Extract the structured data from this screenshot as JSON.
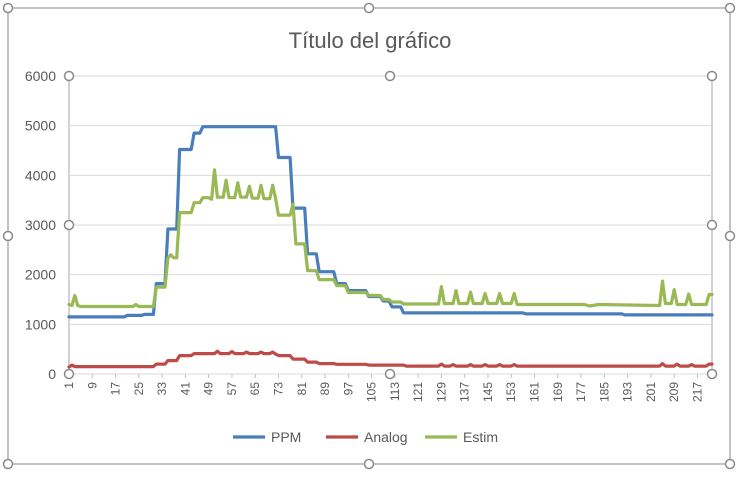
{
  "chart_data": {
    "type": "line",
    "title": "Título del gráfico",
    "xlabel": "",
    "ylabel": "",
    "ylim": [
      0,
      6000
    ],
    "yticks": [
      0,
      1000,
      2000,
      3000,
      4000,
      5000,
      6000
    ],
    "xlim": [
      1,
      222
    ],
    "x_tick_labels": [
      "1",
      "9",
      "17",
      "25",
      "33",
      "41",
      "49",
      "57",
      "65",
      "73",
      "81",
      "89",
      "97",
      "105",
      "113",
      "121",
      "129",
      "137",
      "145",
      "153",
      "161",
      "169",
      "177",
      "185",
      "193",
      "201",
      "209",
      "217"
    ],
    "grid": true,
    "legend": "bottom",
    "series": [
      {
        "name": "PPM",
        "color": "#4a7ebb",
        "points": [
          [
            1,
            1150
          ],
          [
            20,
            1150
          ],
          [
            21,
            1180
          ],
          [
            26,
            1180
          ],
          [
            27,
            1200
          ],
          [
            30,
            1200
          ],
          [
            31,
            1820
          ],
          [
            34,
            1820
          ],
          [
            35,
            2920
          ],
          [
            38,
            2920
          ],
          [
            39,
            4520
          ],
          [
            43,
            4520
          ],
          [
            44,
            4850
          ],
          [
            46,
            4850
          ],
          [
            47,
            4980
          ],
          [
            72,
            4980
          ],
          [
            73,
            4360
          ],
          [
            77,
            4360
          ],
          [
            78,
            3340
          ],
          [
            82,
            3340
          ],
          [
            83,
            2420
          ],
          [
            86,
            2420
          ],
          [
            87,
            2060
          ],
          [
            92,
            2060
          ],
          [
            93,
            1820
          ],
          [
            96,
            1820
          ],
          [
            97,
            1680
          ],
          [
            103,
            1680
          ],
          [
            104,
            1560
          ],
          [
            108,
            1560
          ],
          [
            109,
            1470
          ],
          [
            111,
            1470
          ],
          [
            112,
            1350
          ],
          [
            115,
            1350
          ],
          [
            116,
            1230
          ],
          [
            157,
            1230
          ],
          [
            158,
            1210
          ],
          [
            191,
            1210
          ],
          [
            192,
            1190
          ],
          [
            222,
            1190
          ]
        ]
      },
      {
        "name": "Analog",
        "color": "#be4b48",
        "points": [
          [
            1,
            140
          ],
          [
            2,
            180
          ],
          [
            3,
            150
          ],
          [
            30,
            150
          ],
          [
            31,
            200
          ],
          [
            34,
            200
          ],
          [
            35,
            270
          ],
          [
            38,
            270
          ],
          [
            39,
            370
          ],
          [
            43,
            370
          ],
          [
            44,
            410
          ],
          [
            51,
            410
          ],
          [
            52,
            460
          ],
          [
            53,
            410
          ],
          [
            56,
            410
          ],
          [
            57,
            450
          ],
          [
            58,
            410
          ],
          [
            61,
            410
          ],
          [
            62,
            440
          ],
          [
            63,
            410
          ],
          [
            66,
            410
          ],
          [
            67,
            440
          ],
          [
            68,
            410
          ],
          [
            70,
            410
          ],
          [
            71,
            440
          ],
          [
            72,
            400
          ],
          [
            73,
            370
          ],
          [
            77,
            370
          ],
          [
            78,
            300
          ],
          [
            82,
            300
          ],
          [
            83,
            240
          ],
          [
            86,
            240
          ],
          [
            87,
            210
          ],
          [
            92,
            210
          ],
          [
            93,
            195
          ],
          [
            103,
            195
          ],
          [
            104,
            180
          ],
          [
            116,
            180
          ],
          [
            117,
            160
          ],
          [
            128,
            160
          ],
          [
            129,
            200
          ],
          [
            130,
            160
          ],
          [
            132,
            160
          ],
          [
            133,
            190
          ],
          [
            134,
            160
          ],
          [
            138,
            160
          ],
          [
            139,
            190
          ],
          [
            140,
            160
          ],
          [
            143,
            160
          ],
          [
            144,
            190
          ],
          [
            145,
            160
          ],
          [
            148,
            160
          ],
          [
            149,
            190
          ],
          [
            150,
            160
          ],
          [
            153,
            160
          ],
          [
            154,
            190
          ],
          [
            155,
            160
          ],
          [
            204,
            160
          ],
          [
            205,
            210
          ],
          [
            206,
            160
          ],
          [
            209,
            160
          ],
          [
            210,
            200
          ],
          [
            211,
            160
          ],
          [
            214,
            160
          ],
          [
            215,
            190
          ],
          [
            216,
            160
          ],
          [
            220,
            160
          ],
          [
            221,
            200
          ],
          [
            222,
            200
          ]
        ]
      },
      {
        "name": "Estim",
        "color": "#98b954",
        "points": [
          [
            1,
            1400
          ],
          [
            2,
            1380
          ],
          [
            3,
            1580
          ],
          [
            4,
            1380
          ],
          [
            5,
            1360
          ],
          [
            23,
            1360
          ],
          [
            24,
            1400
          ],
          [
            25,
            1360
          ],
          [
            30,
            1360
          ],
          [
            31,
            1750
          ],
          [
            34,
            1750
          ],
          [
            35,
            2340
          ],
          [
            36,
            2400
          ],
          [
            37,
            2340
          ],
          [
            38,
            2340
          ],
          [
            39,
            3250
          ],
          [
            43,
            3250
          ],
          [
            44,
            3450
          ],
          [
            46,
            3450
          ],
          [
            47,
            3550
          ],
          [
            49,
            3550
          ],
          [
            50,
            3520
          ],
          [
            51,
            4110
          ],
          [
            52,
            3560
          ],
          [
            54,
            3560
          ],
          [
            55,
            3900
          ],
          [
            56,
            3550
          ],
          [
            58,
            3550
          ],
          [
            59,
            3850
          ],
          [
            60,
            3560
          ],
          [
            62,
            3560
          ],
          [
            63,
            3780
          ],
          [
            64,
            3540
          ],
          [
            66,
            3540
          ],
          [
            67,
            3800
          ],
          [
            68,
            3530
          ],
          [
            70,
            3530
          ],
          [
            71,
            3800
          ],
          [
            72,
            3530
          ],
          [
            73,
            3200
          ],
          [
            77,
            3200
          ],
          [
            78,
            3420
          ],
          [
            79,
            2620
          ],
          [
            82,
            2620
          ],
          [
            83,
            2080
          ],
          [
            86,
            2080
          ],
          [
            87,
            1900
          ],
          [
            92,
            1900
          ],
          [
            93,
            1780
          ],
          [
            96,
            1780
          ],
          [
            97,
            1640
          ],
          [
            103,
            1640
          ],
          [
            104,
            1580
          ],
          [
            108,
            1580
          ],
          [
            109,
            1500
          ],
          [
            111,
            1500
          ],
          [
            112,
            1450
          ],
          [
            115,
            1450
          ],
          [
            116,
            1410
          ],
          [
            128,
            1410
          ],
          [
            129,
            1760
          ],
          [
            130,
            1420
          ],
          [
            133,
            1420
          ],
          [
            134,
            1680
          ],
          [
            135,
            1420
          ],
          [
            138,
            1420
          ],
          [
            139,
            1650
          ],
          [
            140,
            1420
          ],
          [
            143,
            1420
          ],
          [
            144,
            1620
          ],
          [
            145,
            1420
          ],
          [
            148,
            1420
          ],
          [
            149,
            1620
          ],
          [
            150,
            1420
          ],
          [
            153,
            1420
          ],
          [
            154,
            1620
          ],
          [
            155,
            1400
          ],
          [
            178,
            1400
          ],
          [
            180,
            1370
          ],
          [
            183,
            1400
          ],
          [
            204,
            1380
          ],
          [
            205,
            1870
          ],
          [
            206,
            1420
          ],
          [
            208,
            1420
          ],
          [
            209,
            1700
          ],
          [
            210,
            1400
          ],
          [
            213,
            1400
          ],
          [
            214,
            1610
          ],
          [
            215,
            1400
          ],
          [
            220,
            1400
          ],
          [
            221,
            1600
          ],
          [
            222,
            1600
          ]
        ]
      }
    ]
  }
}
